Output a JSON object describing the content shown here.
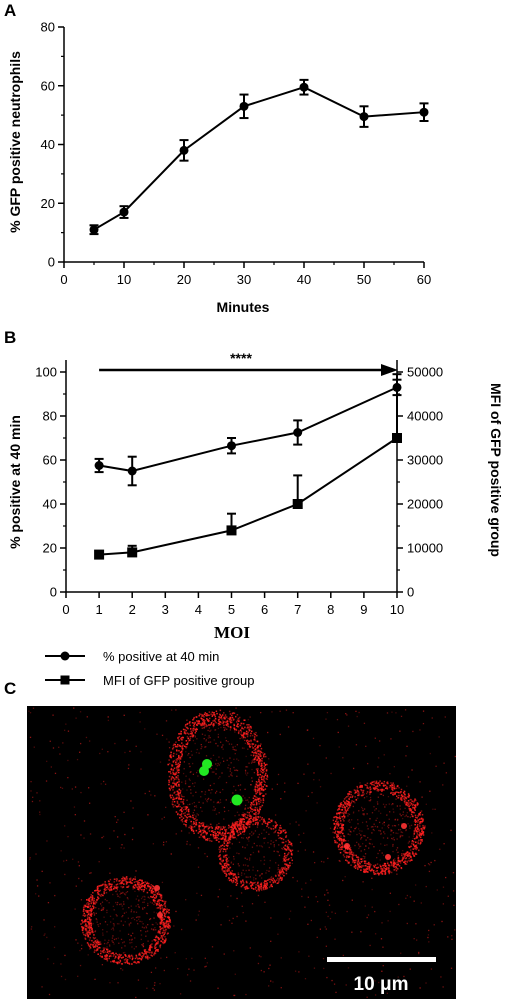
{
  "panels": {
    "a_label": "A",
    "b_label": "B",
    "c_label": "C"
  },
  "chart_data": [
    {
      "type": "line",
      "panel": "A",
      "xlabel": "Minutes",
      "ylabel": "% GFP positive neutrophils",
      "xlim": [
        0,
        60
      ],
      "ylim": [
        0,
        80
      ],
      "xticks": [
        "0",
        "10",
        "20",
        "30",
        "40",
        "50",
        "60"
      ],
      "yticks": [
        "0",
        "20",
        "40",
        "60",
        "80"
      ],
      "series": [
        {
          "x": [
            5,
            10,
            20,
            30,
            40,
            50,
            60
          ],
          "y": [
            11,
            17,
            38,
            53,
            59.5,
            49.5,
            51
          ],
          "err": [
            1.5,
            2,
            3.5,
            4,
            2.5,
            3.5,
            3
          ],
          "marker": "circle"
        }
      ]
    },
    {
      "type": "line",
      "panel": "B",
      "xlabel": "MOI",
      "ylabel": "% positive at 40 min",
      "y2label": "MFI of GFP positive group",
      "xlim": [
        0,
        10
      ],
      "ylim": [
        0,
        100
      ],
      "y2lim": [
        0,
        50000
      ],
      "xticks": [
        "0",
        "1",
        "2",
        "3",
        "4",
        "5",
        "6",
        "7",
        "8",
        "9",
        "10"
      ],
      "yticks": [
        "0",
        "20",
        "40",
        "60",
        "80",
        "100"
      ],
      "y2ticks": [
        "0",
        "10000",
        "20000",
        "30000",
        "40000",
        "50000"
      ],
      "annotation": "****",
      "series": [
        {
          "name": "% positive at 40 min",
          "axis": "left",
          "marker": "circle",
          "x": [
            1,
            2,
            5,
            7,
            10
          ],
          "y": [
            57.5,
            55,
            66.5,
            72.5,
            93
          ],
          "err": [
            3,
            6.5,
            3.5,
            5.5,
            3.5
          ]
        },
        {
          "name": "MFI of GFP positive group",
          "axis": "right",
          "marker": "square",
          "x": [
            1,
            2,
            5,
            7,
            10
          ],
          "y": [
            8500,
            9000,
            14000,
            20000,
            35000
          ],
          "err": [
            600,
            1500,
            3800,
            6500,
            14500
          ]
        }
      ]
    }
  ],
  "micrograph": {
    "scale_bar_label": "10 μm"
  }
}
